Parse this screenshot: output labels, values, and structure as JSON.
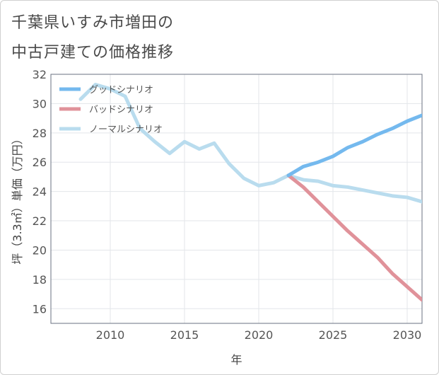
{
  "chart_data": {
    "type": "line",
    "title_line1": "千葉県いすみ市増田の",
    "title_line2": "中古戸建ての価格推移",
    "xlabel": "年",
    "ylabel": "坪（3.3㎡）単価（万円）",
    "xlim": [
      2006,
      2031
    ],
    "ylim": [
      15,
      32
    ],
    "xticks": [
      2010,
      2015,
      2020,
      2025,
      2030
    ],
    "yticks": [
      16,
      18,
      20,
      22,
      24,
      26,
      28,
      30,
      32
    ],
    "grid": true,
    "legend_position": "top-left",
    "series": [
      {
        "name": "グッドシナリオ",
        "color": "#74b9ee",
        "x": [
          2022,
          2023,
          2024,
          2025,
          2026,
          2027,
          2028,
          2029,
          2030,
          2031
        ],
        "values": [
          25.1,
          25.7,
          26.0,
          26.4,
          27.0,
          27.4,
          27.9,
          28.3,
          28.8,
          29.2
        ]
      },
      {
        "name": "バッドシナリオ",
        "color": "#e0929a",
        "x": [
          2022,
          2023,
          2024,
          2025,
          2026,
          2027,
          2028,
          2029,
          2030,
          2031
        ],
        "values": [
          25.1,
          24.3,
          23.3,
          22.3,
          21.3,
          20.4,
          19.5,
          18.4,
          17.5,
          16.6
        ]
      },
      {
        "name": "ノーマルシナリオ",
        "color": "#b9dcee",
        "x": [
          2008,
          2009,
          2010,
          2011,
          2012,
          2013,
          2014,
          2015,
          2016,
          2017,
          2018,
          2019,
          2020,
          2021,
          2022,
          2023,
          2024,
          2025,
          2026,
          2027,
          2028,
          2029,
          2030,
          2031
        ],
        "values": [
          30.3,
          31.3,
          31.0,
          30.5,
          28.3,
          27.4,
          26.6,
          27.4,
          26.9,
          27.3,
          25.9,
          24.9,
          24.4,
          24.6,
          25.1,
          24.8,
          24.7,
          24.4,
          24.3,
          24.1,
          23.9,
          23.7,
          23.6,
          23.3
        ]
      }
    ]
  }
}
